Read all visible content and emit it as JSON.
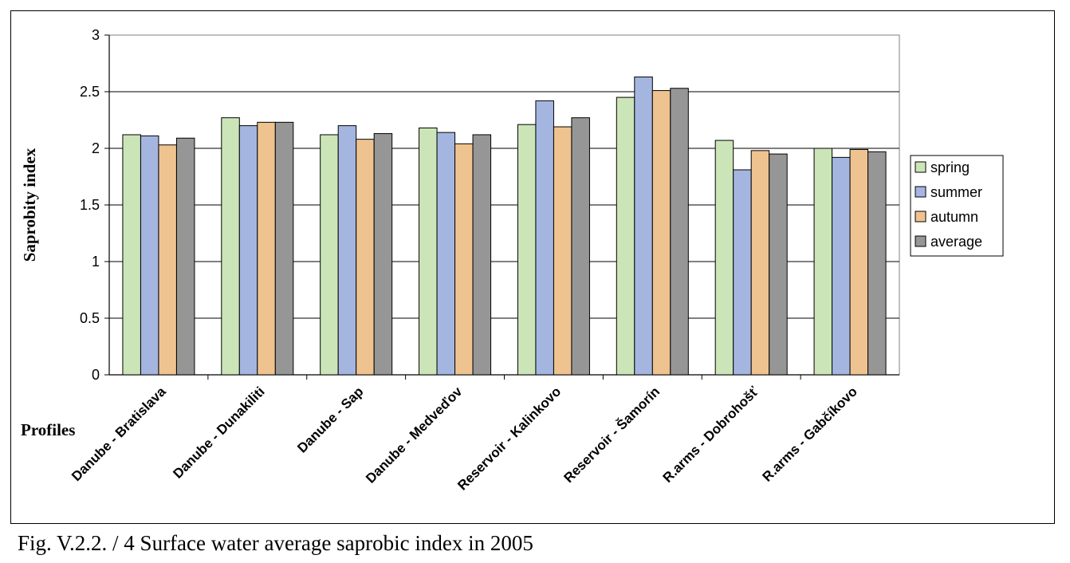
{
  "figure": {
    "caption": "Fig. V.2.2. / 4  Surface water average saprobic index in 2005"
  },
  "chart_data": {
    "type": "bar",
    "title": "",
    "xlabel": "Profiles",
    "ylabel": "Saprobity index",
    "ylim": [
      0,
      3
    ],
    "yticks": [
      "0",
      "0.5",
      "1",
      "1.5",
      "2",
      "2.5",
      "3"
    ],
    "grid": true,
    "legend_position": "right",
    "categories": [
      "Danube - Bratislava",
      "Danube - Dunakiliti",
      "Danube - Sap",
      "Danube - Medveďov",
      "Reservoir - Kalinkovo",
      "Reservoir - Šamorín",
      "R.arms - Dobrohošť",
      "R.arms - Gabčíkovo"
    ],
    "series": [
      {
        "name": "spring",
        "color": "#cce5b8",
        "values": [
          2.12,
          2.27,
          2.12,
          2.18,
          2.21,
          2.45,
          2.07,
          2.0
        ]
      },
      {
        "name": "summer",
        "color": "#a4b6e0",
        "values": [
          2.11,
          2.2,
          2.2,
          2.14,
          2.42,
          2.63,
          1.81,
          1.92
        ]
      },
      {
        "name": "autumn",
        "color": "#efc38f",
        "values": [
          2.03,
          2.23,
          2.08,
          2.04,
          2.19,
          2.51,
          1.98,
          1.99
        ]
      },
      {
        "name": "average",
        "color": "#969696",
        "values": [
          2.09,
          2.23,
          2.13,
          2.12,
          2.27,
          2.53,
          1.95,
          1.97
        ]
      }
    ]
  }
}
